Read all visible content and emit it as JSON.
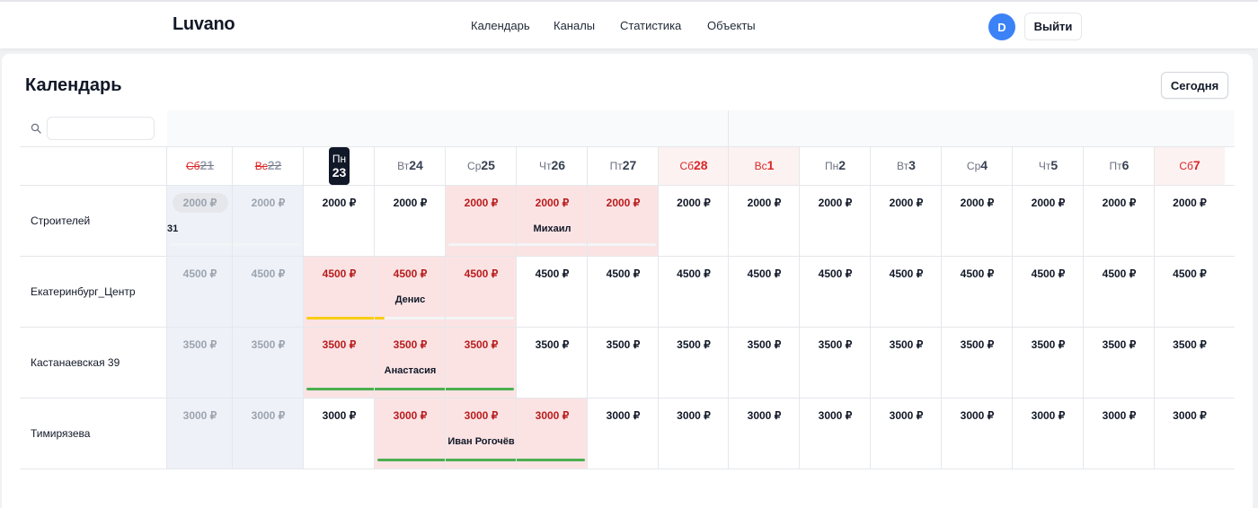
{
  "header": {
    "logo": "Luvano",
    "nav": [
      "Календарь",
      "Каналы",
      "Статистика",
      "Объекты"
    ],
    "avatar": "D",
    "logout": "Выйти"
  },
  "page": {
    "title": "Календарь",
    "today_button": "Сегодня",
    "search": {
      "value": "",
      "placeholder": ""
    }
  },
  "days": [
    {
      "dow": "Сб",
      "num": "21",
      "weekend": true,
      "past": true
    },
    {
      "dow": "Вс",
      "num": "22",
      "weekend": true,
      "past": true
    },
    {
      "dow": "Пн",
      "num": "23",
      "today": true
    },
    {
      "dow": "Вт",
      "num": "24"
    },
    {
      "dow": "Ср",
      "num": "25"
    },
    {
      "dow": "Чт",
      "num": "26"
    },
    {
      "dow": "Пт",
      "num": "27"
    },
    {
      "dow": "Сб",
      "num": "28",
      "weekend": true
    },
    {
      "dow": "Вс",
      "num": "1",
      "weekend": true
    },
    {
      "dow": "Пн",
      "num": "2"
    },
    {
      "dow": "Вт",
      "num": "3"
    },
    {
      "dow": "Ср",
      "num": "4"
    },
    {
      "dow": "Чт",
      "num": "5"
    },
    {
      "dow": "Пт",
      "num": "6"
    },
    {
      "dow": "Сб",
      "num": "7",
      "weekend": true
    }
  ],
  "rooms": [
    {
      "name": "Строителей",
      "prices": [
        "2000 ₽",
        "2000 ₽",
        "2000 ₽",
        "2000 ₽",
        "2000 ₽",
        "2000 ₽",
        "2000 ₽",
        "2000 ₽",
        "2000 ₽",
        "2000 ₽",
        "2000 ₽",
        "2000 ₽",
        "2000 ₽",
        "2000 ₽",
        "2000 ₽"
      ],
      "booked": [
        4,
        5,
        6
      ],
      "bookings": [
        {
          "guest": "31",
          "start": 0,
          "end": 1,
          "color": "#f3f4f6"
        },
        {
          "guest": "Михаил",
          "start": 4,
          "end": 6,
          "color": "#f3f4f6"
        }
      ]
    },
    {
      "name": "Екатеринбург_Центр",
      "prices": [
        "4500 ₽",
        "4500 ₽",
        "4500 ₽",
        "4500 ₽",
        "4500 ₽",
        "4500 ₽",
        "4500 ₽",
        "4500 ₽",
        "4500 ₽",
        "4500 ₽",
        "4500 ₽",
        "4500 ₽",
        "4500 ₽",
        "4500 ₽",
        "4500 ₽"
      ],
      "booked": [
        2,
        3,
        4
      ],
      "bookings": [
        {
          "guest": "Денис",
          "start": 2,
          "end": 4,
          "color": "#f3f4f6",
          "accent": "#facc15"
        }
      ]
    },
    {
      "name": "Кастанаевская 39",
      "prices": [
        "3500 ₽",
        "3500 ₽",
        "3500 ₽",
        "3500 ₽",
        "3500 ₽",
        "3500 ₽",
        "3500 ₽",
        "3500 ₽",
        "3500 ₽",
        "3500 ₽",
        "3500 ₽",
        "3500 ₽",
        "3500 ₽",
        "3500 ₽",
        "3500 ₽"
      ],
      "booked": [
        2,
        3,
        4
      ],
      "bookings": [
        {
          "guest": "Анастасия",
          "start": 2,
          "end": 4,
          "color": "#4caf50"
        }
      ]
    },
    {
      "name": "Тимирязева",
      "prices": [
        "3000 ₽",
        "3000 ₽",
        "3000 ₽",
        "3000 ₽",
        "3000 ₽",
        "3000 ₽",
        "3000 ₽",
        "3000 ₽",
        "3000 ₽",
        "3000 ₽",
        "3000 ₽",
        "3000 ₽",
        "3000 ₽",
        "3000 ₽",
        "3000 ₽"
      ],
      "booked": [
        3,
        4,
        5
      ],
      "bookings": [
        {
          "guest": "Иван Рогочёв",
          "start": 3,
          "end": 5,
          "color": "#4caf50"
        }
      ]
    }
  ]
}
